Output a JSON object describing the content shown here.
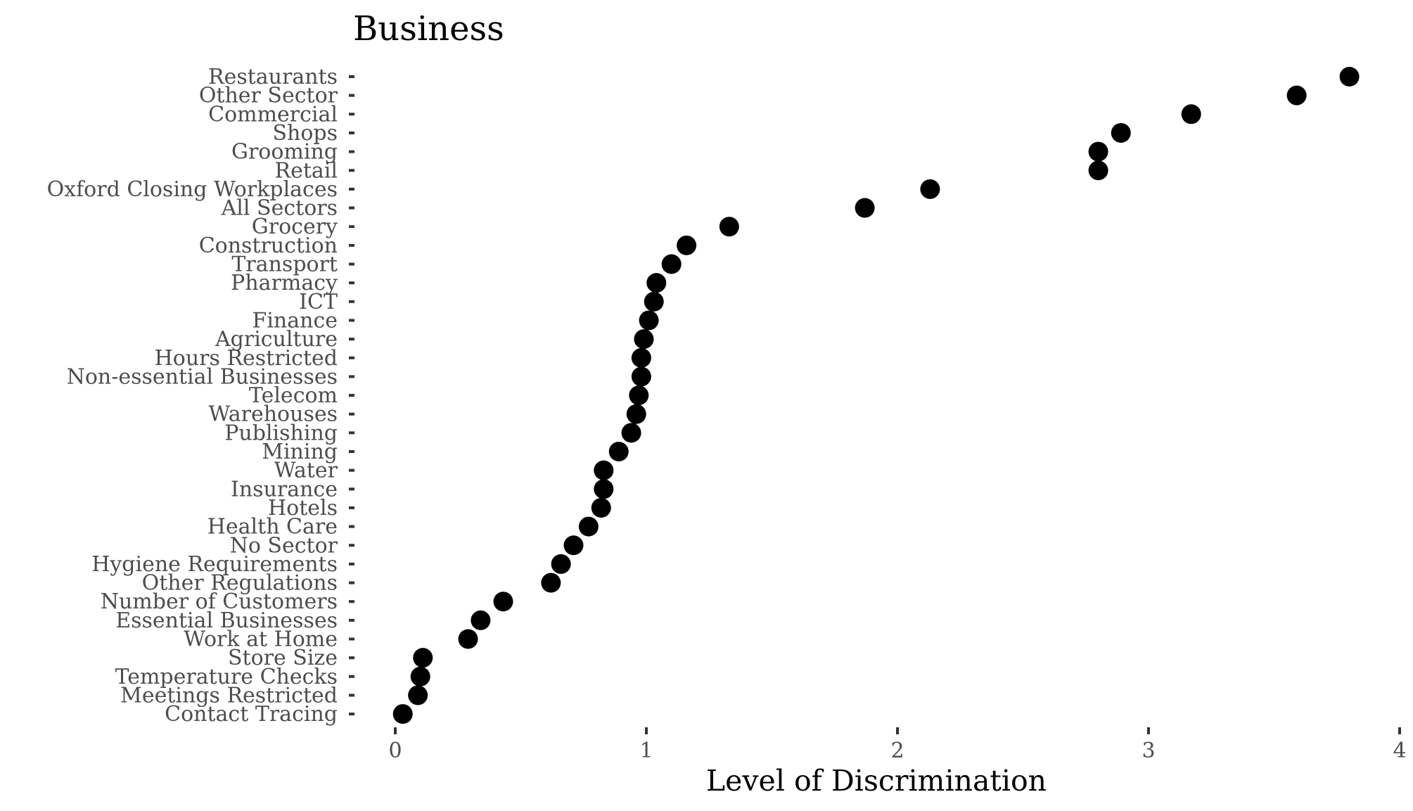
{
  "chart_data": {
    "type": "scatter",
    "title": "Business",
    "xlabel": "Level of Discrimination",
    "ylabel": "",
    "xlim": [
      0,
      4
    ],
    "x_ticks": [
      0,
      1,
      2,
      3,
      4
    ],
    "grid": false,
    "legend": "none",
    "marker_color": "#000000",
    "categories": [
      "Restaurants",
      "Other Sector",
      "Commercial",
      "Shops",
      "Grooming",
      "Retail",
      "Oxford Closing Workplaces",
      "All Sectors",
      "Grocery",
      "Construction",
      "Transport",
      "Pharmacy",
      "ICT",
      "Finance",
      "Agriculture",
      "Hours Restricted",
      "Non-essential Businesses",
      "Telecom",
      "Warehouses",
      "Publishing",
      "Mining",
      "Water",
      "Insurance",
      "Hotels",
      "Health Care",
      "No Sector",
      "Hygiene Requirements",
      "Other Regulations",
      "Number of Customers",
      "Essential Businesses",
      "Work at Home",
      "Store Size",
      "Temperature Checks",
      "Meetings Restricted",
      "Contact Tracing"
    ],
    "values": [
      3.8,
      3.59,
      3.17,
      2.89,
      2.8,
      2.8,
      2.13,
      1.87,
      1.33,
      1.16,
      1.1,
      1.04,
      1.03,
      1.01,
      0.99,
      0.98,
      0.98,
      0.97,
      0.96,
      0.94,
      0.89,
      0.83,
      0.83,
      0.82,
      0.77,
      0.71,
      0.66,
      0.62,
      0.43,
      0.34,
      0.29,
      0.11,
      0.1,
      0.09,
      0.03
    ]
  }
}
